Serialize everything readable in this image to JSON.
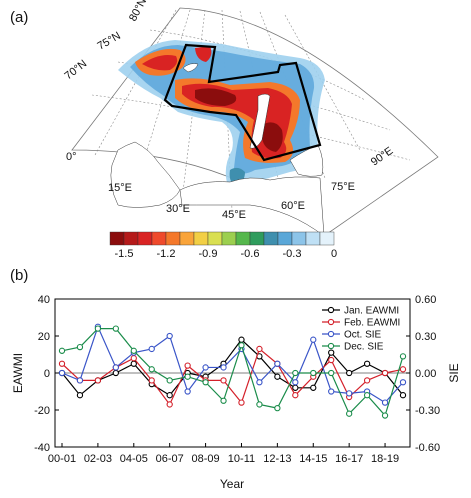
{
  "panel_a": {
    "label": "(a)",
    "lat_labels": [
      "80°N",
      "75°N",
      "70°N"
    ],
    "lon_labels": [
      "0°",
      "15°E",
      "30°E",
      "45°E",
      "60°E",
      "75°E",
      "90°E"
    ],
    "colorbar": {
      "colors": [
        "#8b0d0d",
        "#b51a1a",
        "#d92323",
        "#ef4a2c",
        "#f4782b",
        "#f9a43a",
        "#f2cf45",
        "#d9df51",
        "#9ccf4f",
        "#55b74c",
        "#2f9c5d",
        "#3f8fae",
        "#5aa7d8",
        "#8cc4e9",
        "#bfe0f5",
        "#e4f2fb"
      ],
      "tick_labels": [
        "-1.5",
        "-1.2",
        "-0.9",
        "-0.6",
        "-0.3",
        "0"
      ]
    }
  },
  "chart_data": {
    "type": "line",
    "panel_label": "(b)",
    "xlabel": "Year",
    "ylabel_left": "EAWMI",
    "ylabel_right": "SIE",
    "ylim_left": [
      -40,
      40
    ],
    "ylim_right": [
      -0.6,
      0.6
    ],
    "left_ticks": [
      "-40",
      "-20",
      "0",
      "20",
      "40"
    ],
    "right_ticks": [
      "-0.60",
      "-0.30",
      "0.00",
      "0.30",
      "0.60"
    ],
    "x_tick_labels": [
      "00-01",
      "02-03",
      "04-05",
      "06-07",
      "08-09",
      "10-11",
      "12-13",
      "14-15",
      "16-17",
      "18-19"
    ],
    "legend_position": "top-right",
    "series": [
      {
        "name": "Jan. EAWMI",
        "axis": "left",
        "color": "#000000",
        "values": [
          0,
          -12,
          -4,
          0,
          5,
          -6,
          -12,
          0,
          -2,
          5,
          18,
          9,
          -2,
          -8,
          -8,
          11,
          0,
          5,
          0,
          -12
        ]
      },
      {
        "name": "Feb. EAWMI",
        "axis": "left",
        "color": "#d4202a",
        "values": [
          5,
          -4,
          -4,
          3,
          8,
          -4,
          -17,
          4,
          -4,
          -4,
          -16,
          13,
          5,
          -12,
          -2,
          7,
          -13,
          -4,
          0,
          2
        ]
      },
      {
        "name": "Oct. SIE",
        "axis": "left",
        "color": "#3a55c8",
        "values": [
          0,
          -4,
          25,
          3,
          11,
          13,
          20,
          -10,
          3,
          3,
          13,
          -5,
          5,
          -5,
          18,
          -10,
          -11,
          -10,
          -16,
          -5
        ]
      },
      {
        "name": "Dec. SIE",
        "axis": "left",
        "color": "#1a8c4a",
        "values": [
          12,
          14,
          24,
          24,
          12,
          2,
          -4,
          -2,
          -5,
          -15,
          15,
          -17,
          -19,
          0,
          0,
          0,
          -22,
          -12,
          -23,
          9
        ]
      }
    ]
  }
}
